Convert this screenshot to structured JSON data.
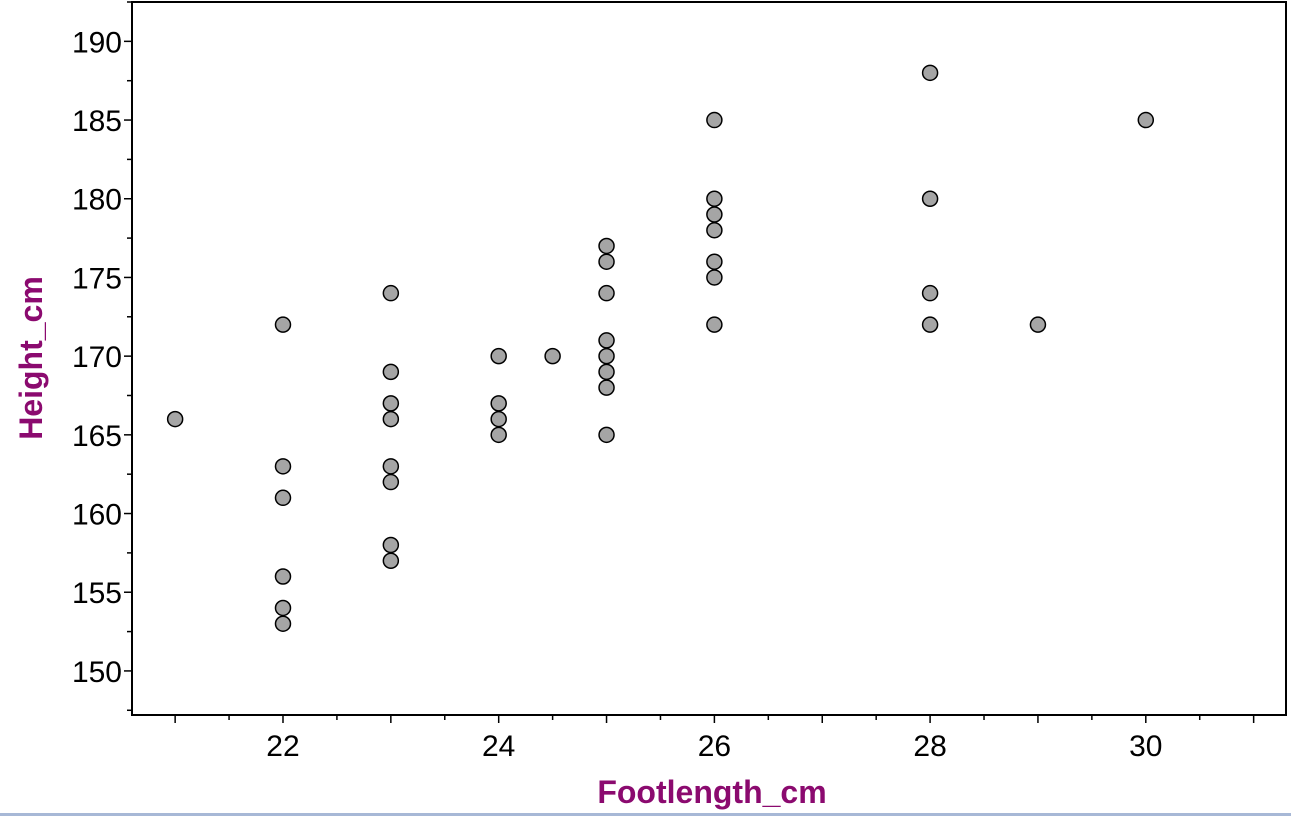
{
  "colors": {
    "axis_title": "#8b0a6f",
    "point_fill": "#a5a5a5",
    "point_stroke": "#000000",
    "frame": "#000000",
    "bottom_strip": "#a7b8d6"
  },
  "chart_data": {
    "type": "scatter",
    "title": "",
    "xlabel": "Footlength_cm",
    "ylabel": "Height_cm",
    "xlim": [
      20.6,
      31.3
    ],
    "ylim": [
      147.2,
      192.5
    ],
    "x_ticks": [
      22,
      24,
      26,
      28,
      30
    ],
    "y_ticks": [
      150,
      155,
      160,
      165,
      170,
      175,
      180,
      185,
      190
    ],
    "x_minor_step": 0.5,
    "y_minor_step": 2.5,
    "grid": false,
    "legend": "none",
    "points": [
      {
        "x": 21,
        "y": 166
      },
      {
        "x": 22,
        "y": 172
      },
      {
        "x": 22,
        "y": 163
      },
      {
        "x": 22,
        "y": 161
      },
      {
        "x": 22,
        "y": 156
      },
      {
        "x": 22,
        "y": 154
      },
      {
        "x": 22,
        "y": 153
      },
      {
        "x": 23,
        "y": 174
      },
      {
        "x": 23,
        "y": 169
      },
      {
        "x": 23,
        "y": 167
      },
      {
        "x": 23,
        "y": 166
      },
      {
        "x": 23,
        "y": 163
      },
      {
        "x": 23,
        "y": 162
      },
      {
        "x": 23,
        "y": 158
      },
      {
        "x": 23,
        "y": 157
      },
      {
        "x": 24,
        "y": 170
      },
      {
        "x": 24,
        "y": 167
      },
      {
        "x": 24,
        "y": 166
      },
      {
        "x": 24,
        "y": 165
      },
      {
        "x": 24.5,
        "y": 170
      },
      {
        "x": 25,
        "y": 177
      },
      {
        "x": 25,
        "y": 176
      },
      {
        "x": 25,
        "y": 174
      },
      {
        "x": 25,
        "y": 171
      },
      {
        "x": 25,
        "y": 170
      },
      {
        "x": 25,
        "y": 169
      },
      {
        "x": 25,
        "y": 168
      },
      {
        "x": 25,
        "y": 165
      },
      {
        "x": 26,
        "y": 185
      },
      {
        "x": 26,
        "y": 180
      },
      {
        "x": 26,
        "y": 179
      },
      {
        "x": 26,
        "y": 178
      },
      {
        "x": 26,
        "y": 176
      },
      {
        "x": 26,
        "y": 175
      },
      {
        "x": 26,
        "y": 172
      },
      {
        "x": 28,
        "y": 188
      },
      {
        "x": 28,
        "y": 180
      },
      {
        "x": 28,
        "y": 174
      },
      {
        "x": 28,
        "y": 172
      },
      {
        "x": 29,
        "y": 172
      },
      {
        "x": 30,
        "y": 185
      }
    ]
  }
}
